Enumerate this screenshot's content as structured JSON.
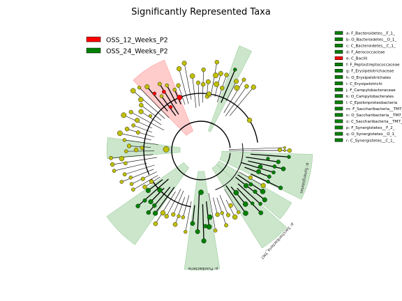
{
  "chart_data": {
    "type": "cladogram",
    "title": "Significantly Represented Taxa",
    "groups": [
      {
        "name": "OSS_12_Weeks_P2",
        "color": "#ff0000"
      },
      {
        "name": "OSS_24_Weeks_P2",
        "color": "#008000"
      }
    ],
    "node_color_default": "#c0c000",
    "taxa_key": [
      {
        "id": "a",
        "text": "a: F_Bacteroidetes__F_1_",
        "group": "OSS_24_Weeks_P2"
      },
      {
        "id": "b",
        "text": "b: O_Bacteroidetes__O_1_",
        "group": "OSS_24_Weeks_P2"
      },
      {
        "id": "c",
        "text": "c: C_Bacteroidetes__C_1_",
        "group": "OSS_24_Weeks_P2"
      },
      {
        "id": "d",
        "text": "d: F_Aerococcaceae",
        "group": "OSS_24_Weeks_P2"
      },
      {
        "id": "e",
        "text": "e: C_Bacilli",
        "group": "OSS_12_Weeks_P2"
      },
      {
        "id": "f",
        "text": "f: F_Peptostreptococcaceae",
        "group": "OSS_24_Weeks_P2"
      },
      {
        "id": "g",
        "text": "g: F_Erysipelotrichaceae",
        "group": "OSS_24_Weeks_P2"
      },
      {
        "id": "h",
        "text": "h: O_Erysipelotrichales",
        "group": "OSS_24_Weeks_P2"
      },
      {
        "id": "i",
        "text": "i: C_Erysipelotrichi",
        "group": "OSS_24_Weeks_P2"
      },
      {
        "id": "j",
        "text": "j: F_Campylobacteraceae",
        "group": "OSS_24_Weeks_P2"
      },
      {
        "id": "k",
        "text": "k: O_Campylobacterales",
        "group": "OSS_24_Weeks_P2"
      },
      {
        "id": "l",
        "text": "l: C_Epsilonproteobacteria",
        "group": "OSS_24_Weeks_P2"
      },
      {
        "id": "m",
        "text": "m: F_Saccharibacteria__TM7__F_1_",
        "group": "OSS_24_Weeks_P2"
      },
      {
        "id": "n",
        "text": "n: O_Saccharibacteria__TM7__O_1_",
        "group": "OSS_24_Weeks_P2"
      },
      {
        "id": "o",
        "text": "o: C_Saccharibacteria__TM7__C_1_",
        "group": "OSS_24_Weeks_P2"
      },
      {
        "id": "p",
        "text": "p: F_Synergistetes__F_2_",
        "group": "OSS_24_Weeks_P2"
      },
      {
        "id": "q",
        "text": "q: O_Synergistetes__O_1_",
        "group": "OSS_24_Weeks_P2"
      },
      {
        "id": "r",
        "text": "r: C_Synergistetes__C_1_",
        "group": "OSS_24_Weeks_P2"
      }
    ],
    "clade_labels": [
      {
        "text": "p: Synergistetes",
        "group": "OSS_24_Weeks_P2"
      },
      {
        "text": "p: Saccharibacteria_TM7",
        "group": "OSS_24_Weeks_P2"
      },
      {
        "text": "p: Fusobacteria",
        "group": "OSS_24_Weeks_P2"
      }
    ]
  }
}
